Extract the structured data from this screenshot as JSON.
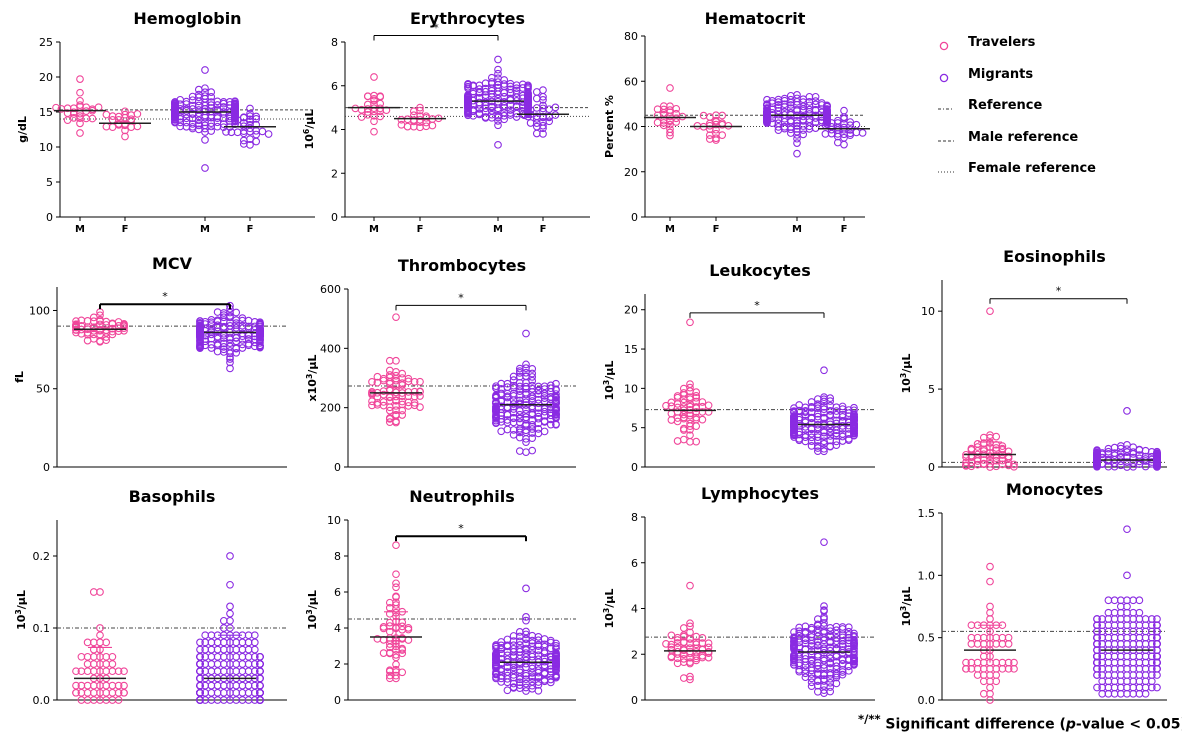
{
  "colors": {
    "travelers": "#f0469a",
    "migrants": "#8a2be2",
    "axis": "#000000",
    "ref_line": "#333333"
  },
  "legend": {
    "items": [
      {
        "label": "Travelers",
        "kind": "marker",
        "color": "#f0469a"
      },
      {
        "label": "Migrants",
        "kind": "marker",
        "color": "#8a2be2"
      },
      {
        "label": "Reference",
        "kind": "line",
        "style": "dashdot"
      },
      {
        "label": "Male reference",
        "kind": "line",
        "style": "dashed"
      },
      {
        "label": "Female reference",
        "kind": "line",
        "style": "dotted"
      }
    ]
  },
  "footnote": {
    "marks": "*/**",
    "text_before": "Significant difference (",
    "italic": "p",
    "text_after": "-value < 0.05)."
  },
  "chart_data": [
    {
      "id": "hemoglobin",
      "type": "scatter",
      "title": "Hemoglobin",
      "ylabel": "g/dL",
      "ylim": [
        0,
        25
      ],
      "yticks": [
        "0",
        "5",
        "10",
        "15",
        "20",
        "25"
      ],
      "yticks_v": [
        0,
        5,
        10,
        15,
        20,
        25
      ],
      "categories": [
        "M",
        "F",
        "M",
        "F"
      ],
      "series": [
        {
          "group": "Travelers",
          "sex": "M",
          "median": 15.2,
          "min": 12.0,
          "max": 19.7,
          "n": 26,
          "spread": 1.1
        },
        {
          "group": "Travelers",
          "sex": "F",
          "median": 13.4,
          "min": 11.5,
          "max": 15.1,
          "n": 22,
          "spread": 1.0
        },
        {
          "group": "Migrants",
          "sex": "M",
          "median": 15.0,
          "min": 7.0,
          "max": 21.0,
          "n": 200,
          "spread": 1.3
        },
        {
          "group": "Migrants",
          "sex": "F",
          "median": 12.9,
          "min": 10.3,
          "max": 15.5,
          "n": 30,
          "spread": 1.0
        }
      ],
      "ref_male": 15.3,
      "ref_female": 14.0,
      "significance": null
    },
    {
      "id": "erythrocytes",
      "type": "scatter",
      "title": "Erythrocytes",
      "ylabel": "10^6/µL",
      "ylim": [
        0,
        8
      ],
      "yticks": [
        "0",
        "2",
        "4",
        "6",
        "8"
      ],
      "yticks_v": [
        0,
        2,
        4,
        6,
        8
      ],
      "categories": [
        "M",
        "F",
        "M",
        "F"
      ],
      "series": [
        {
          "group": "Travelers",
          "sex": "M",
          "median": 5.0,
          "min": 3.9,
          "max": 6.4,
          "n": 26,
          "spread": 0.45
        },
        {
          "group": "Travelers",
          "sex": "F",
          "median": 4.5,
          "min": 4.1,
          "max": 5.0,
          "n": 22,
          "spread": 0.3
        },
        {
          "group": "Migrants",
          "sex": "M",
          "median": 5.3,
          "min": 3.3,
          "max": 7.2,
          "n": 200,
          "spread": 0.5
        },
        {
          "group": "Migrants",
          "sex": "F",
          "median": 4.7,
          "min": 3.8,
          "max": 5.8,
          "n": 30,
          "spread": 0.45
        }
      ],
      "ref_male": 5.0,
      "ref_female": 4.6,
      "significance": {
        "from": 0,
        "to": 2,
        "label": "*",
        "y": 8.3
      }
    },
    {
      "id": "hematocrit",
      "type": "scatter",
      "title": "Hematocrit",
      "ylabel": "Percent %",
      "ylim": [
        0,
        80
      ],
      "yticks": [
        "0",
        "20",
        "40",
        "60",
        "80"
      ],
      "yticks_v": [
        0,
        20,
        40,
        60,
        80
      ],
      "categories": [
        "M",
        "F",
        "M",
        "F"
      ],
      "series": [
        {
          "group": "Travelers",
          "sex": "M",
          "median": 44,
          "min": 36,
          "max": 57,
          "n": 26,
          "spread": 3
        },
        {
          "group": "Travelers",
          "sex": "F",
          "median": 40,
          "min": 34,
          "max": 45,
          "n": 22,
          "spread": 3
        },
        {
          "group": "Migrants",
          "sex": "M",
          "median": 45,
          "min": 28,
          "max": 54,
          "n": 200,
          "spread": 3.5
        },
        {
          "group": "Migrants",
          "sex": "F",
          "median": 39,
          "min": 32,
          "max": 47,
          "n": 30,
          "spread": 3
        }
      ],
      "ref_male": 45,
      "ref_female": 40,
      "significance": null
    },
    {
      "id": "mcv",
      "type": "scatter",
      "title": "MCV",
      "ylabel": "fL",
      "ylim": [
        0,
        115
      ],
      "yticks": [
        "0",
        "50",
        "100"
      ],
      "yticks_v": [
        0,
        50,
        100
      ],
      "categories": [
        "",
        ""
      ],
      "series": [
        {
          "group": "Travelers",
          "median": 88,
          "min": 80,
          "max": 99,
          "n": 60,
          "spread": 4
        },
        {
          "group": "Migrants",
          "median": 86,
          "min": 63,
          "max": 103,
          "n": 220,
          "spread": 6
        }
      ],
      "reference": 90,
      "significance": {
        "from": 0,
        "to": 1,
        "label": "*",
        "y": 104,
        "bold": true
      }
    },
    {
      "id": "thrombocytes",
      "type": "scatter",
      "title": "Thrombocytes",
      "ylabel": "x10^3/µL",
      "ylim": [
        0,
        600
      ],
      "yticks": [
        "0",
        "200",
        "400",
        "600"
      ],
      "yticks_v": [
        0,
        200,
        400,
        600
      ],
      "categories": [
        "",
        ""
      ],
      "series": [
        {
          "group": "Travelers",
          "median": 250,
          "min": 150,
          "max": 505,
          "n": 80,
          "spread": 55
        },
        {
          "group": "Migrants",
          "median": 210,
          "min": 50,
          "max": 450,
          "n": 220,
          "spread": 60
        }
      ],
      "reference": 273,
      "significance": {
        "from": 0,
        "to": 1,
        "label": "*",
        "y": 545
      }
    },
    {
      "id": "leukocytes",
      "type": "scatter",
      "title": "Leukocytes",
      "ylabel": "10^3/µL",
      "ylim": [
        0,
        22
      ],
      "yticks": [
        "0",
        "5",
        "10",
        "15",
        "20"
      ],
      "yticks_v": [
        0,
        5,
        10,
        15,
        20
      ],
      "categories": [
        "",
        ""
      ],
      "series": [
        {
          "group": "Travelers",
          "median": 7.2,
          "min": 3.2,
          "max": 18.4,
          "n": 60,
          "spread": 2.0
        },
        {
          "group": "Migrants",
          "median": 5.4,
          "min": 2.0,
          "max": 12.3,
          "n": 220,
          "spread": 1.4
        }
      ],
      "reference": 7.3,
      "significance": {
        "from": 0,
        "to": 1,
        "label": "*",
        "y": 19.6
      }
    },
    {
      "id": "eosinophils",
      "type": "scatter",
      "title": "Eosinophils",
      "ylabel": "10^3/µL",
      "ylim": [
        0,
        12
      ],
      "yticks": [
        "0",
        "5",
        "10"
      ],
      "yticks_v": [
        0,
        5,
        10
      ],
      "categories": [
        "",
        ""
      ],
      "series": [
        {
          "group": "Travelers",
          "median": 0.8,
          "min": 0.0,
          "max": 10.0,
          "n": 60,
          "spread": 0.6,
          "ci": [
            0.4,
            1.6
          ]
        },
        {
          "group": "Migrants",
          "median": 0.45,
          "min": 0.0,
          "max": 3.6,
          "n": 220,
          "spread": 0.35
        }
      ],
      "reference": 0.3,
      "significance": {
        "from": 0,
        "to": 1,
        "label": "*",
        "y": 10.8
      }
    },
    {
      "id": "basophils",
      "type": "scatter",
      "title": "Basophils",
      "ylabel": "10^3/µL",
      "ylim": [
        0,
        0.25
      ],
      "yticks": [
        "0.0",
        "0.1",
        "0.2"
      ],
      "yticks_v": [
        0,
        0.1,
        0.2
      ],
      "categories": [
        "",
        ""
      ],
      "series": [
        {
          "group": "Travelers",
          "median": 0.03,
          "min": 0.0,
          "max": 0.15,
          "n": 60,
          "spread": 0.04,
          "ci": [
            0.0,
            0.073
          ],
          "discrete": 0.01
        },
        {
          "group": "Migrants",
          "median": 0.03,
          "min": 0.0,
          "max": 0.2,
          "n": 220,
          "spread": 0.04,
          "ci": [
            0.0,
            0.09
          ],
          "discrete": 0.01
        }
      ],
      "reference": 0.1,
      "significance": null
    },
    {
      "id": "neutrophils",
      "type": "scatter",
      "title": "Neutrophils",
      "ylabel": "10^3/µL",
      "ylim": [
        0,
        10
      ],
      "yticks": [
        "0",
        "2",
        "4",
        "6",
        "8",
        "10"
      ],
      "yticks_v": [
        0,
        2,
        4,
        6,
        8,
        10
      ],
      "categories": [
        "",
        ""
      ],
      "series": [
        {
          "group": "Travelers",
          "median": 3.5,
          "min": 1.2,
          "max": 8.6,
          "n": 60,
          "spread": 1.3,
          "ci": [
            2.8,
            4.9
          ]
        },
        {
          "group": "Migrants",
          "median": 2.1,
          "min": 0.5,
          "max": 6.2,
          "n": 220,
          "spread": 0.8
        }
      ],
      "reference": 4.5,
      "significance": {
        "from": 0,
        "to": 1,
        "label": "*",
        "y": 9.1,
        "bold": true
      }
    },
    {
      "id": "lymphocytes",
      "type": "scatter",
      "title": "Lymphocytes",
      "ylabel": "10^3/µL",
      "ylim": [
        0,
        8
      ],
      "yticks": [
        "0",
        "2",
        "4",
        "6",
        "8"
      ],
      "yticks_v": [
        0,
        2,
        4,
        6,
        8
      ],
      "categories": [
        "",
        ""
      ],
      "series": [
        {
          "group": "Travelers",
          "median": 2.15,
          "min": 0.9,
          "max": 5.0,
          "n": 60,
          "spread": 0.55
        },
        {
          "group": "Migrants",
          "median": 2.1,
          "min": 0.3,
          "max": 6.9,
          "n": 220,
          "spread": 0.7
        }
      ],
      "reference": 2.75,
      "significance": null
    },
    {
      "id": "monocytes",
      "type": "scatter",
      "title": "Monocytes",
      "ylabel": "10^3/µL",
      "ylim": [
        0,
        1.5
      ],
      "yticks": [
        "0.0",
        "0.5",
        "1.0",
        "1.5"
      ],
      "yticks_v": [
        0,
        0.5,
        1.0,
        1.5
      ],
      "categories": [
        "",
        ""
      ],
      "series": [
        {
          "group": "Travelers",
          "median": 0.4,
          "min": 0.0,
          "max": 1.07,
          "n": 60,
          "spread": 0.22,
          "ci": [
            0.3,
            0.6
          ],
          "discrete": 0.05
        },
        {
          "group": "Migrants",
          "median": 0.4,
          "min": 0.05,
          "max": 1.37,
          "n": 220,
          "spread": 0.2,
          "discrete": 0.05
        }
      ],
      "reference": 0.55,
      "significance": null
    }
  ]
}
